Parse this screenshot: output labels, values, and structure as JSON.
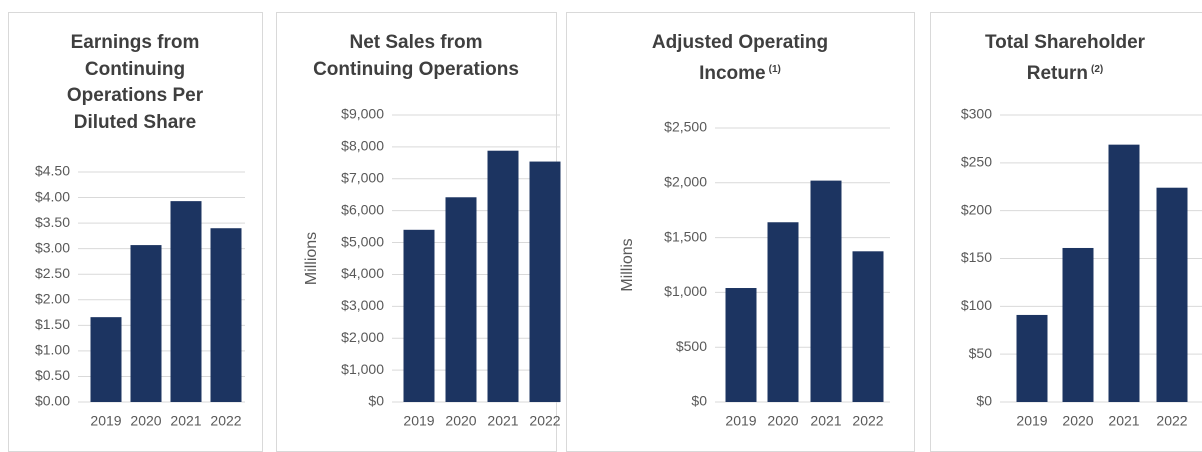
{
  "chart_data": [
    {
      "type": "bar",
      "title": "Earnings from Continuing Operations Per Diluted Share",
      "categories": [
        "2019",
        "2020",
        "2021",
        "2022"
      ],
      "values": [
        1.66,
        3.07,
        3.93,
        3.4
      ],
      "color": "#1c3461",
      "ylim": [
        0,
        4.5
      ],
      "yticks": [
        {
          "value": 0,
          "label": "$0.00"
        },
        {
          "value": 0.5,
          "label": "$0.50"
        },
        {
          "value": 1,
          "label": "$1.00"
        },
        {
          "value": 1.5,
          "label": "$1.50"
        },
        {
          "value": 2,
          "label": "$2.00"
        },
        {
          "value": 2.5,
          "label": "$2.50"
        },
        {
          "value": 3,
          "label": "$3.00"
        },
        {
          "value": 3.5,
          "label": "$3.50"
        },
        {
          "value": 4,
          "label": "$4.00"
        },
        {
          "value": 4.5,
          "label": "$4.50"
        }
      ],
      "grid": true
    },
    {
      "type": "bar",
      "title": "Net Sales from Continuing Operations",
      "y_label": "Millions",
      "categories": [
        "2019",
        "2020",
        "2021",
        "2022"
      ],
      "values": [
        5400,
        6420,
        7880,
        7540
      ],
      "color": "#1c3461",
      "ylim": [
        0,
        9000
      ],
      "yticks": [
        {
          "value": 0,
          "label": "$0"
        },
        {
          "value": 1000,
          "label": "$1,000"
        },
        {
          "value": 2000,
          "label": "$2,000"
        },
        {
          "value": 3000,
          "label": "$3,000"
        },
        {
          "value": 4000,
          "label": "$4,000"
        },
        {
          "value": 5000,
          "label": "$5,000"
        },
        {
          "value": 6000,
          "label": "$6,000"
        },
        {
          "value": 7000,
          "label": "$7,000"
        },
        {
          "value": 8000,
          "label": "$8,000"
        },
        {
          "value": 9000,
          "label": "$9,000"
        }
      ],
      "grid": true
    },
    {
      "type": "bar",
      "title": "Adjusted Operating Income",
      "title_note": "(1)",
      "y_label": "Millions",
      "categories": [
        "2019",
        "2020",
        "2021",
        "2022"
      ],
      "values": [
        1040,
        1640,
        2020,
        1375
      ],
      "color": "#1c3461",
      "ylim": [
        0,
        2500
      ],
      "yticks": [
        {
          "value": 0,
          "label": "$0"
        },
        {
          "value": 500,
          "label": "$500"
        },
        {
          "value": 1000,
          "label": "$1,000"
        },
        {
          "value": 1500,
          "label": "$1,500"
        },
        {
          "value": 2000,
          "label": "$2,000"
        },
        {
          "value": 2500,
          "label": "$2,500"
        }
      ],
      "grid": true
    },
    {
      "type": "bar",
      "title": "Total Shareholder Return",
      "title_note": "(2)",
      "categories": [
        "2019",
        "2020",
        "2021",
        "2022"
      ],
      "values": [
        91,
        161,
        269,
        224
      ],
      "color": "#1c3461",
      "ylim": [
        0,
        300
      ],
      "yticks": [
        {
          "value": 0,
          "label": "$0"
        },
        {
          "value": 50,
          "label": "$50"
        },
        {
          "value": 100,
          "label": "$100"
        },
        {
          "value": 150,
          "label": "$150"
        },
        {
          "value": 200,
          "label": "$200"
        },
        {
          "value": 250,
          "label": "$250"
        },
        {
          "value": 300,
          "label": "$300"
        }
      ],
      "grid": true
    }
  ]
}
